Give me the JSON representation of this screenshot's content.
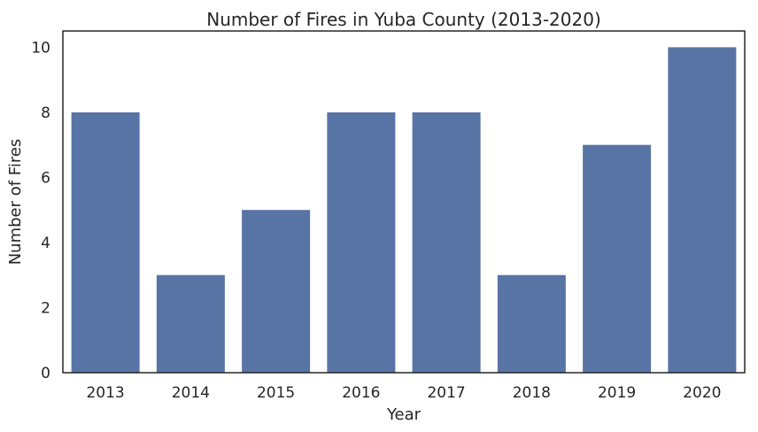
{
  "chart_data": {
    "type": "bar",
    "title": "Number of Fires in Yuba County (2013-2020)",
    "xlabel": "Year",
    "ylabel": "Number of Fires",
    "categories": [
      "2013",
      "2014",
      "2015",
      "2016",
      "2017",
      "2018",
      "2019",
      "2020"
    ],
    "values": [
      8,
      3,
      5,
      8,
      8,
      3,
      7,
      10
    ],
    "ylim": [
      0,
      10.5
    ],
    "yticks": [
      "0",
      "2",
      "4",
      "6",
      "8",
      "10"
    ],
    "grid": false,
    "bar_color": "#5874a4",
    "frame_color": "#262626"
  }
}
